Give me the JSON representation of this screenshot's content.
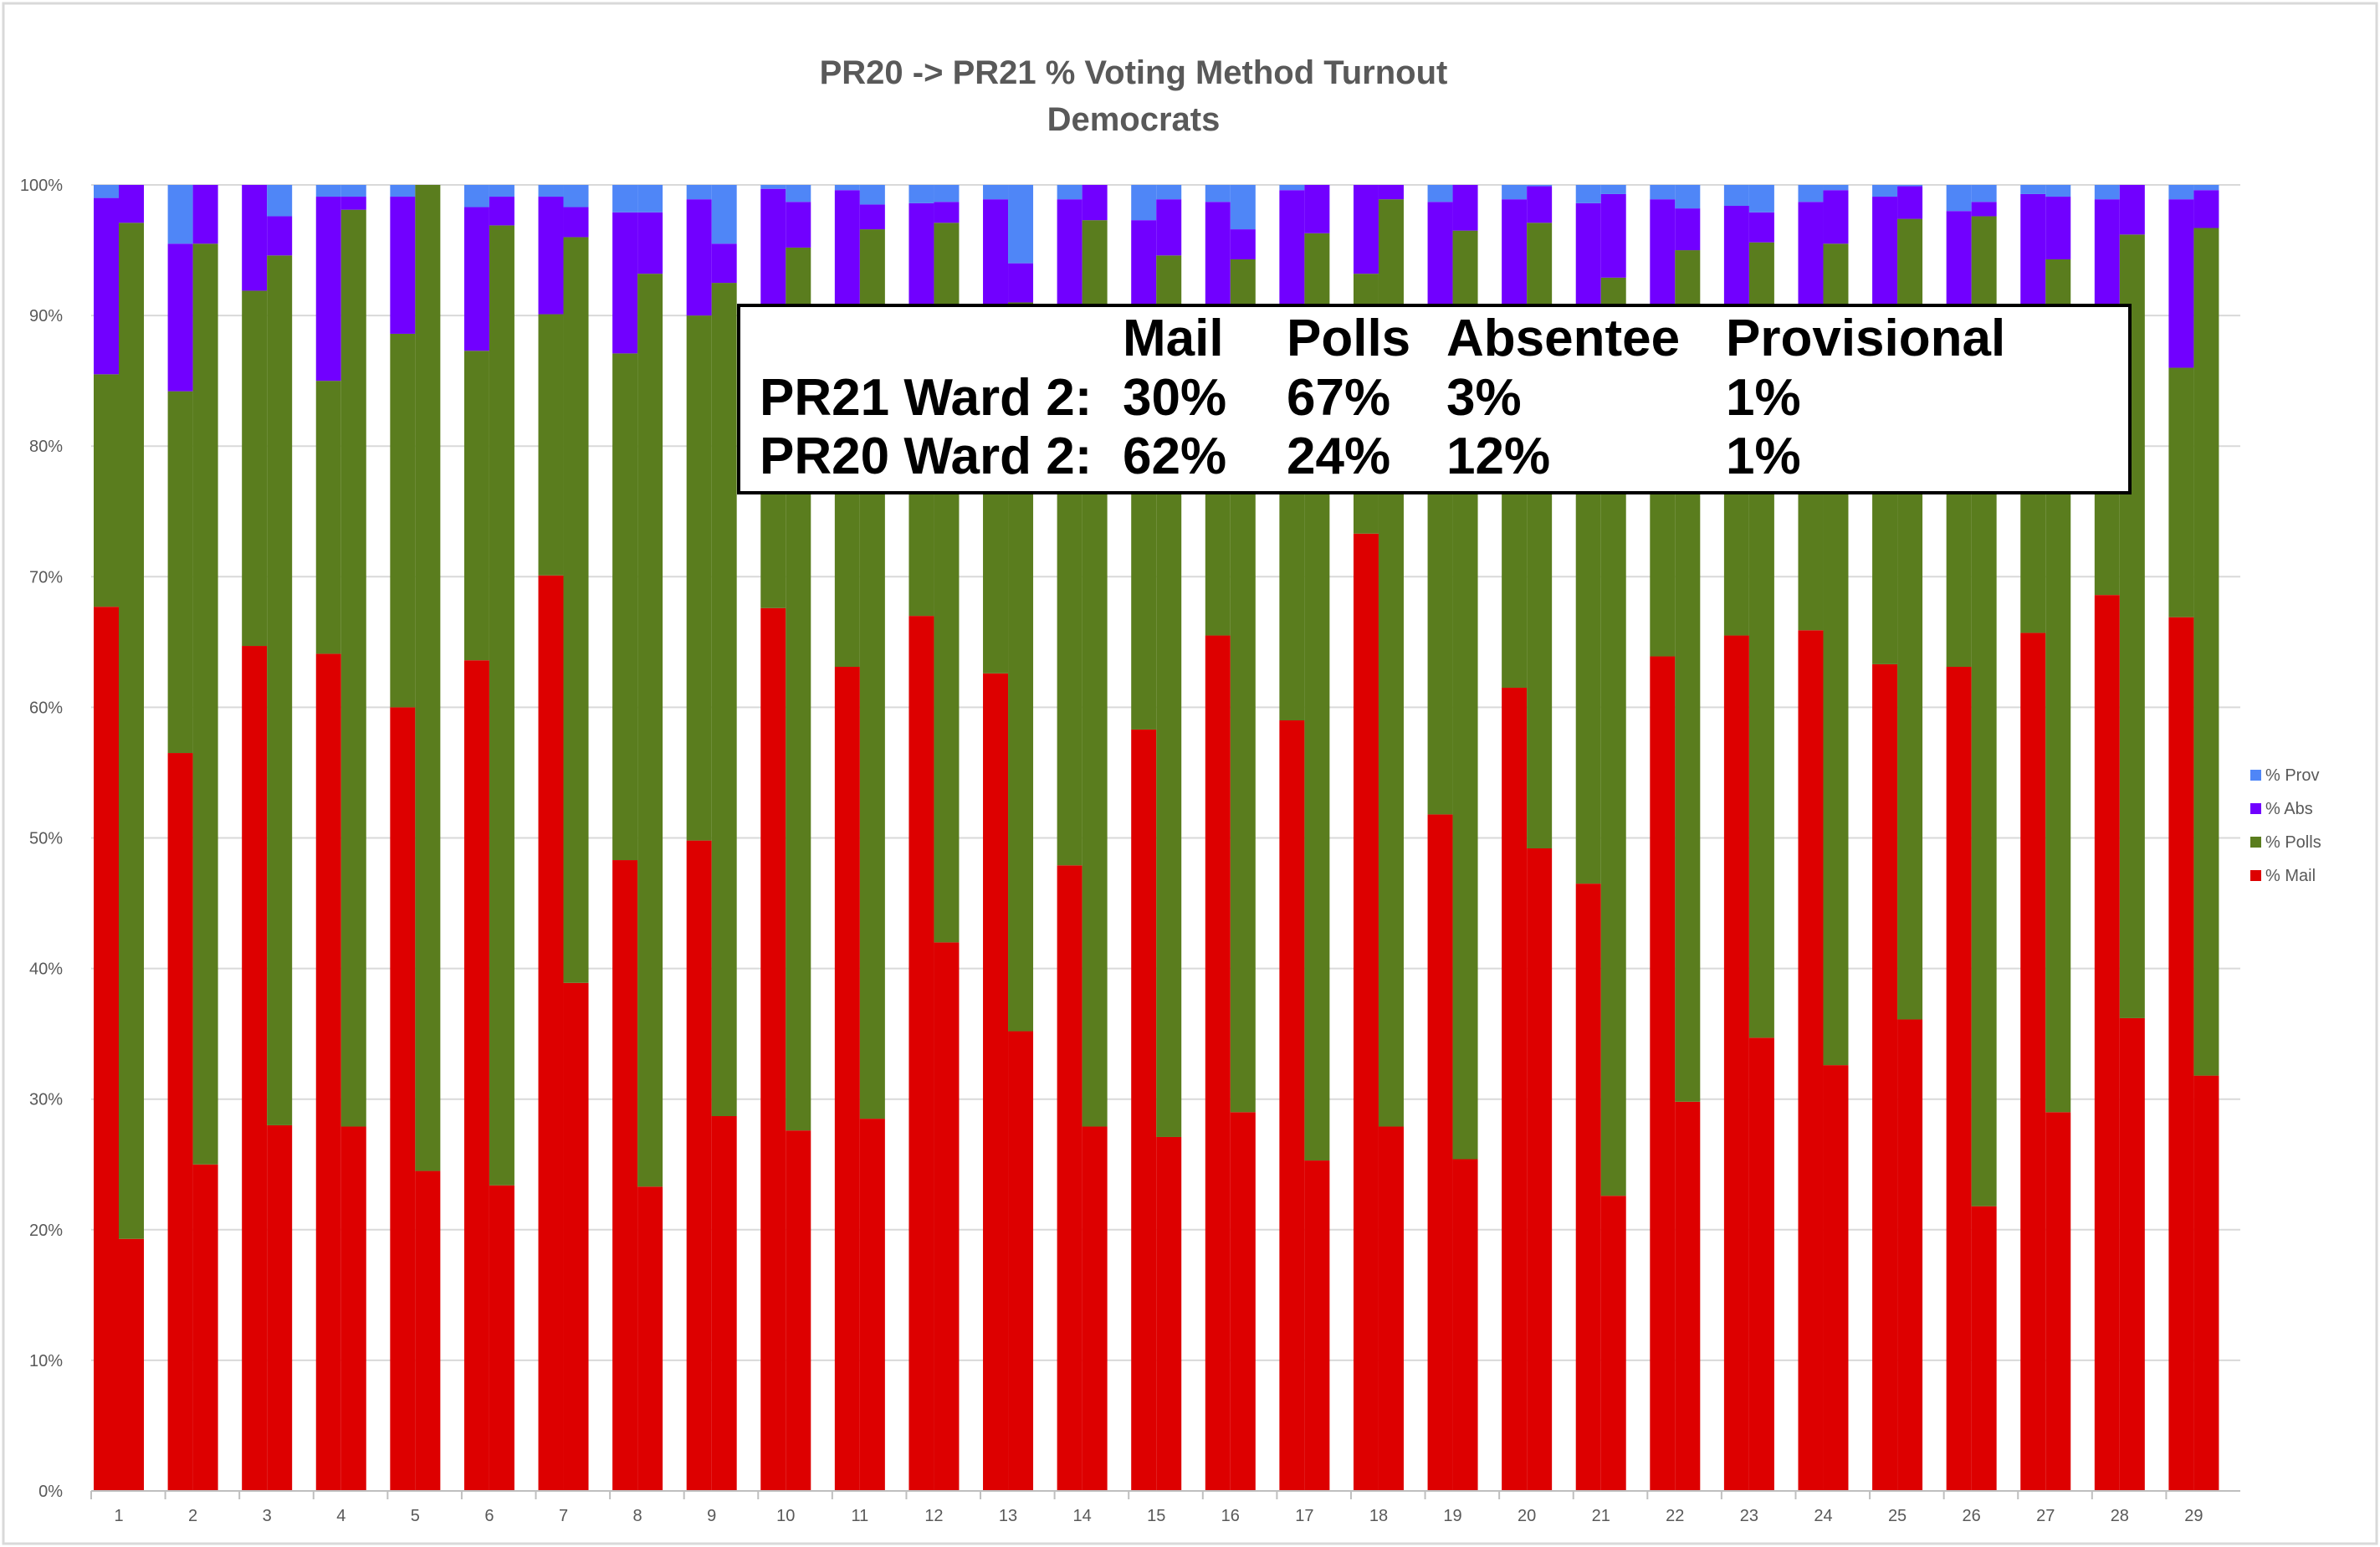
{
  "chart_data": {
    "type": "bar",
    "stacked": true,
    "title": "PR20 -> PR21 % Voting Method Turnout",
    "subtitle": "Democrats",
    "xlabel": "",
    "ylabel": "",
    "ylim": [
      0,
      100
    ],
    "y_ticks": [
      "0%",
      "10%",
      "20%",
      "30%",
      "40%",
      "50%",
      "60%",
      "70%",
      "80%",
      "90%",
      "100%"
    ],
    "categories": [
      "1",
      "2",
      "3",
      "4",
      "5",
      "6",
      "7",
      "8",
      "9",
      "10",
      "11",
      "12",
      "13",
      "14",
      "15",
      "16",
      "17",
      "18",
      "19",
      "20",
      "21",
      "22",
      "23",
      "24",
      "25",
      "26",
      "27",
      "28",
      "29"
    ],
    "bar_pairs": [
      "PR20",
      "PR21"
    ],
    "legend": {
      "position": "right",
      "entries": [
        "% Prov",
        "% Abs",
        "% Polls",
        "% Mail"
      ]
    },
    "colors": {
      "mail": "#dd0000",
      "polls": "#5a7d1e",
      "abs": "#7100ff",
      "prov": "#4f86f7"
    },
    "series": {
      "PR20": {
        "mail": [
          67.7,
          56.5,
          64.7,
          64.1,
          60.0,
          63.6,
          70.1,
          48.3,
          49.8,
          67.6,
          63.1,
          67.0,
          62.6,
          47.9,
          58.3,
          65.5,
          59.0,
          73.3,
          51.8,
          61.5,
          46.5,
          63.9,
          65.5,
          65.9,
          63.3,
          63.1,
          65.7,
          68.6,
          66.9
        ],
        "polls": [
          17.8,
          27.7,
          27.2,
          20.9,
          28.6,
          23.7,
          20.0,
          38.8,
          40.2,
          20.4,
          24.9,
          21.0,
          25.4,
          40.1,
          29.7,
          22.5,
          29.0,
          19.9,
          36.2,
          26.5,
          41.5,
          24.1,
          22.5,
          22.1,
          24.7,
          24.9,
          22.3,
          19.4,
          19.1
        ],
        "abs": [
          13.5,
          11.3,
          8.1,
          14.1,
          10.5,
          11.0,
          9.0,
          10.8,
          8.9,
          11.7,
          11.6,
          10.6,
          10.9,
          10.9,
          9.3,
          10.7,
          11.6,
          6.8,
          10.7,
          10.9,
          10.6,
          10.9,
          10.4,
          10.7,
          11.1,
          10.0,
          11.3,
          10.9,
          12.9
        ],
        "prov": [
          1.0,
          4.5,
          0,
          0.9,
          0.9,
          1.7,
          0.9,
          2.1,
          1.1,
          0.3,
          0.4,
          1.4,
          1.1,
          1.1,
          2.7,
          1.3,
          0.4,
          0,
          1.3,
          1.1,
          1.4,
          1.1,
          1.6,
          1.3,
          0.9,
          2.0,
          0.7,
          1.1,
          1.1
        ]
      },
      "PR21": {
        "mail": [
          19.3,
          25.0,
          28.0,
          27.9,
          24.5,
          23.4,
          38.9,
          23.3,
          28.7,
          27.6,
          28.5,
          42.0,
          35.2,
          27.9,
          27.1,
          29.0,
          25.3,
          27.9,
          25.4,
          49.2,
          22.6,
          29.8,
          34.7,
          32.6,
          36.1,
          21.8,
          29.0,
          36.2,
          31.8
        ],
        "polls": [
          77.8,
          70.5,
          66.6,
          70.2,
          75.5,
          73.5,
          57.1,
          69.9,
          63.8,
          67.6,
          68.1,
          55.1,
          55.8,
          69.4,
          67.5,
          65.3,
          71.0,
          71.0,
          71.1,
          47.9,
          70.3,
          65.2,
          60.9,
          62.9,
          61.3,
          75.8,
          65.3,
          60.0,
          64.9
        ],
        "abs": [
          2.9,
          4.5,
          3.0,
          1.0,
          0,
          2.2,
          2.3,
          4.7,
          3.0,
          3.5,
          1.9,
          1.6,
          3.0,
          2.7,
          4.3,
          2.3,
          3.7,
          1.1,
          3.5,
          2.8,
          6.4,
          3.2,
          2.3,
          4.1,
          2.5,
          1.1,
          4.8,
          3.8,
          2.9
        ],
        "prov": [
          0,
          0,
          2.4,
          0.9,
          0,
          0.9,
          1.7,
          2.1,
          4.5,
          1.3,
          1.5,
          1.3,
          6.0,
          0,
          1.1,
          3.4,
          0,
          0,
          0,
          0.1,
          0.7,
          1.8,
          2.1,
          0.4,
          0.1,
          1.3,
          0.9,
          0,
          0.4
        ]
      }
    },
    "annotation": {
      "headers": [
        "",
        "Mail",
        "Polls",
        "Absentee",
        "Provisional"
      ],
      "rows": [
        [
          "PR21 Ward 2:",
          "30%",
          "67%",
          "3%",
          "1%"
        ],
        [
          "PR20 Ward 2:",
          "62%",
          "24%",
          "12%",
          "1%"
        ]
      ]
    }
  }
}
